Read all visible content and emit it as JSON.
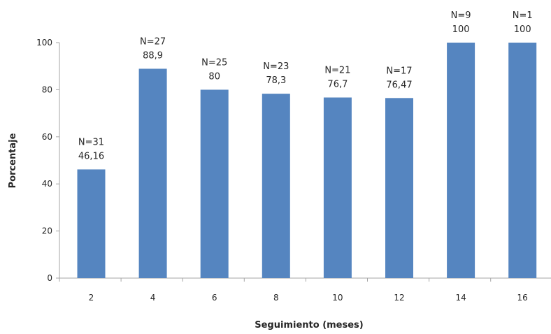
{
  "chart_data": {
    "type": "bar",
    "xlabel": "Seguimiento (meses)",
    "ylabel": "Porcentaje",
    "categories": [
      "2",
      "4",
      "6",
      "8",
      "10",
      "12",
      "14",
      "16"
    ],
    "values": [
      46.16,
      88.9,
      80,
      78.3,
      76.7,
      76.47,
      100,
      100
    ],
    "value_labels": [
      "46,16",
      "88,9",
      "80",
      "78,3",
      "76,7",
      "76,47",
      "100",
      "100"
    ],
    "n_labels": [
      "N=31",
      "N=27",
      "N=25",
      "N=23",
      "N=21",
      "N=17",
      "N=9",
      "N=1"
    ],
    "ylim": [
      0,
      100
    ],
    "yticks": [
      0,
      20,
      40,
      60,
      80,
      100
    ],
    "grid": false,
    "legend": "none",
    "bar_color": "#5585c0",
    "axis_color": "#a6a6a6"
  }
}
